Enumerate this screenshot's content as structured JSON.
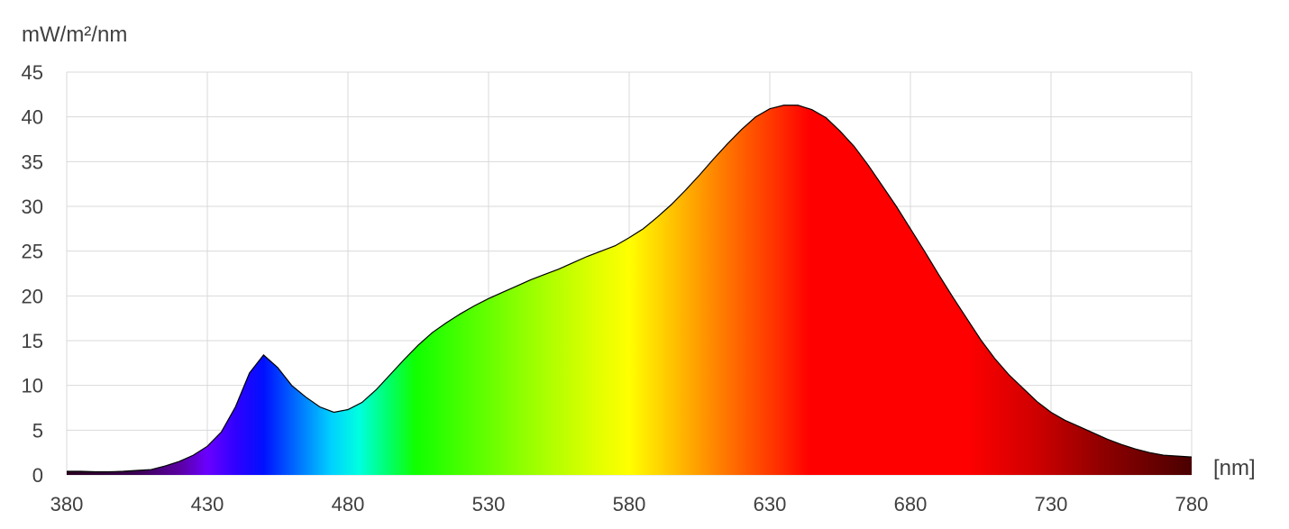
{
  "chart_data": {
    "type": "area",
    "title": "",
    "ylabel": "mW/m²/nm",
    "xlabel": "[nm]",
    "xlim": [
      380,
      780
    ],
    "ylim": [
      0,
      45
    ],
    "x_ticks": [
      380,
      430,
      480,
      530,
      580,
      630,
      680,
      730,
      780
    ],
    "y_ticks": [
      0,
      5,
      10,
      15,
      20,
      25,
      30,
      35,
      40,
      45
    ],
    "grid": true,
    "fill": "visible-spectrum gradient (violet to dark red)",
    "series": [
      {
        "x": [
          380,
          385,
          390,
          395,
          400,
          405,
          410,
          415,
          420,
          425,
          430,
          435,
          440,
          445,
          450,
          455,
          460,
          465,
          470,
          475,
          480,
          485,
          490,
          495,
          500,
          505,
          510,
          515,
          520,
          525,
          530,
          535,
          540,
          545,
          550,
          555,
          560,
          565,
          570,
          575,
          580,
          585,
          590,
          595,
          600,
          605,
          610,
          615,
          620,
          625,
          630,
          635,
          640,
          645,
          650,
          655,
          660,
          665,
          670,
          675,
          680,
          685,
          690,
          695,
          700,
          705,
          710,
          715,
          720,
          725,
          730,
          735,
          740,
          745,
          750,
          755,
          760,
          765,
          770,
          775,
          780
        ],
        "y": [
          0.4,
          0.4,
          0.35,
          0.35,
          0.4,
          0.5,
          0.6,
          1.0,
          1.5,
          2.2,
          3.2,
          4.8,
          7.6,
          11.4,
          13.4,
          12.0,
          10.0,
          8.7,
          7.6,
          7.0,
          7.3,
          8.1,
          9.5,
          11.2,
          12.9,
          14.5,
          15.9,
          17.0,
          18.0,
          18.9,
          19.7,
          20.4,
          21.1,
          21.8,
          22.4,
          23.0,
          23.7,
          24.4,
          25.0,
          25.6,
          26.5,
          27.5,
          28.8,
          30.2,
          31.8,
          33.5,
          35.3,
          37.0,
          38.6,
          40.0,
          40.9,
          41.3,
          41.3,
          40.8,
          39.9,
          38.4,
          36.7,
          34.6,
          32.3,
          30.0,
          27.5,
          25.0,
          22.4,
          19.9,
          17.5,
          15.1,
          13.0,
          11.2,
          9.7,
          8.2,
          7.0,
          6.1,
          5.4,
          4.7,
          4.0,
          3.4,
          2.9,
          2.5,
          2.2,
          2.1,
          2.0
        ]
      }
    ]
  }
}
